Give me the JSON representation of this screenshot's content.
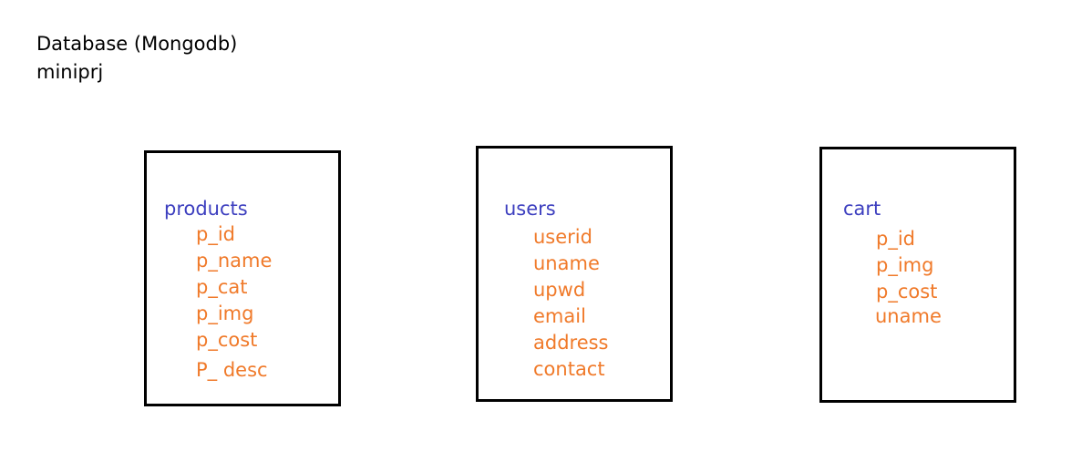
{
  "header": {
    "line1": "Database (Mongodb)",
    "line2": "miniprj"
  },
  "colors": {
    "collection_title": "#3d3fbf",
    "field": "#f07a2a",
    "border": "#000000"
  },
  "collections": [
    {
      "name": "products",
      "fields": [
        "p_id",
        "p_name",
        "p_cat",
        "p_img",
        "p_cost",
        "P_ desc"
      ]
    },
    {
      "name": "users",
      "fields": [
        "userid",
        "uname",
        "upwd",
        "email",
        "address",
        "contact"
      ]
    },
    {
      "name": "cart",
      "fields": [
        "p_id",
        "p_img",
        "p_cost",
        "uname"
      ]
    }
  ]
}
